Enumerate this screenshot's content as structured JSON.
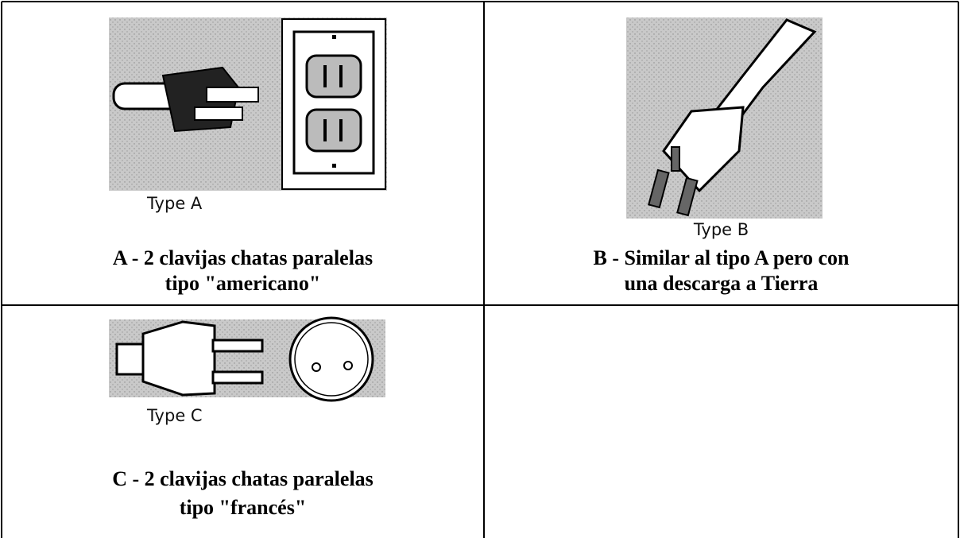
{
  "table": {
    "rows": [
      [
        {
          "image_label": "Type A",
          "caption": [
            "A - 2 clavijas chatas paralelas",
            "tipo \"americano\""
          ]
        },
        {
          "image_label": "Type B",
          "caption": [
            "B - Similar al tipo A pero con",
            "una descarga a Tierra"
          ]
        }
      ],
      [
        {
          "image_label": "Type C",
          "caption": [
            "C - 2 clavijas chatas paralelas",
            "tipo \"francés\""
          ]
        }
      ]
    ]
  }
}
